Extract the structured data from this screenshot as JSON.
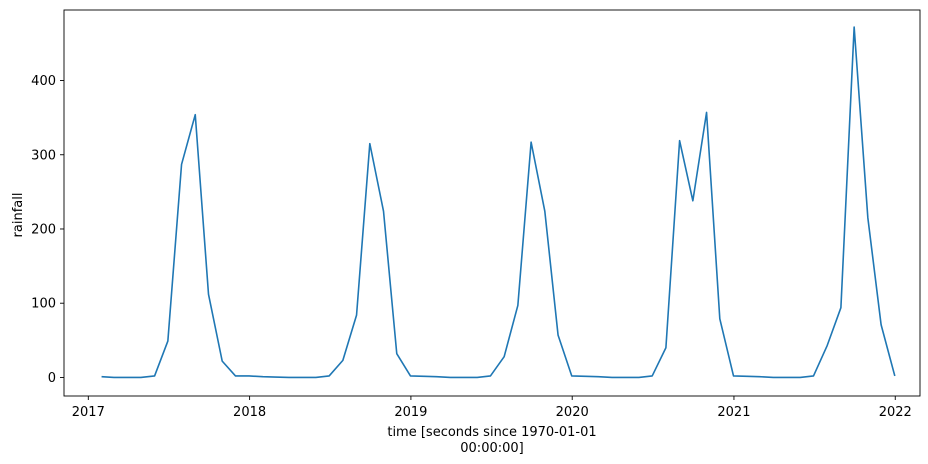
{
  "chart_data": {
    "type": "line",
    "title": "",
    "xlabel_lines": [
      "time [seconds since 1970-01-01",
      "00:00:00]"
    ],
    "ylabel": "rainfall",
    "x_ticks": [
      "2017",
      "2018",
      "2019",
      "2020",
      "2021",
      "2022"
    ],
    "y_ticks": [
      "0",
      "100",
      "200",
      "300",
      "400"
    ],
    "xlim": [
      "2016-11-07",
      "2022-02-26"
    ],
    "ylim": [
      -25,
      495
    ],
    "grid": false,
    "line_color": "#1f77b4",
    "series": [
      {
        "x": [
          "2017-01-31",
          "2017-02-28",
          "2017-03-31",
          "2017-04-30",
          "2017-05-31",
          "2017-06-30",
          "2017-07-31",
          "2017-08-31",
          "2017-09-30",
          "2017-10-31",
          "2017-11-30",
          "2017-12-31",
          "2018-01-31",
          "2018-02-28",
          "2018-03-31",
          "2018-04-30",
          "2018-05-31",
          "2018-06-30",
          "2018-07-31",
          "2018-08-31",
          "2018-09-30",
          "2018-10-31",
          "2018-11-30",
          "2018-12-31",
          "2019-01-31",
          "2019-02-28",
          "2019-03-31",
          "2019-04-30",
          "2019-05-31",
          "2019-06-30",
          "2019-07-31",
          "2019-08-31",
          "2019-09-30",
          "2019-10-31",
          "2019-11-30",
          "2019-12-31",
          "2020-01-31",
          "2020-02-29",
          "2020-03-31",
          "2020-04-30",
          "2020-05-31",
          "2020-06-30",
          "2020-07-31",
          "2020-08-31",
          "2020-09-30",
          "2020-10-31",
          "2020-11-30",
          "2020-12-31",
          "2021-01-31",
          "2021-02-28",
          "2021-03-31",
          "2021-04-30",
          "2021-05-31",
          "2021-06-30",
          "2021-07-31",
          "2021-08-31",
          "2021-09-30",
          "2021-10-31",
          "2021-11-30",
          "2021-12-31"
        ],
        "values": [
          1,
          0,
          0,
          0,
          2,
          49,
          287,
          354,
          112,
          22,
          2,
          2,
          1,
          0.5,
          0,
          0,
          0,
          2,
          23,
          84,
          315,
          224,
          32,
          2,
          1.5,
          1,
          0,
          0,
          0,
          2,
          28,
          97,
          317,
          224,
          57,
          2,
          1.5,
          1,
          0,
          0,
          0,
          2,
          40,
          319,
          238,
          357,
          79,
          2,
          1.5,
          1,
          0,
          0,
          0,
          2,
          43,
          94,
          472,
          215,
          71,
          2
        ]
      }
    ]
  }
}
